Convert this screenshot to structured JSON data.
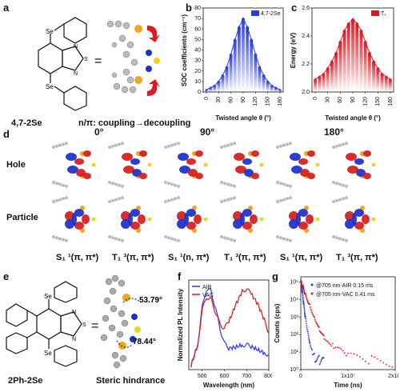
{
  "panels": {
    "a": "a",
    "b": "b",
    "c": "c",
    "d": "d",
    "e": "e",
    "f": "f",
    "g": "g"
  },
  "a": {
    "compound": "4,7-2Se",
    "coupling_text": "n/π: coupling→decoupling",
    "atom": "Se",
    "heteroatoms": [
      "N",
      "S",
      "N"
    ],
    "equals": "="
  },
  "b": {
    "legend": "4,7-2Se",
    "ylabel": "SOC coefficients (cm⁻¹)",
    "xlabel": "Twisted angle θ (°)",
    "xticks": [
      "0",
      "30",
      "60",
      "90",
      "120",
      "150",
      "180"
    ],
    "yticks": [
      "0",
      "10",
      "20",
      "30",
      "40",
      "50",
      "60",
      "70",
      "80"
    ]
  },
  "c": {
    "legend": "T₁",
    "ylabel": "Energy (eV)",
    "xlabel": "Twisted angle θ (°)",
    "xticks": [
      "0",
      "30",
      "60",
      "90",
      "120",
      "150",
      "180"
    ],
    "yticks": [
      "2.0",
      "2.2",
      "2.4",
      "2.6"
    ]
  },
  "d": {
    "angles": [
      "0°",
      "90°",
      "180°"
    ],
    "rows": [
      "Hole",
      "Particle"
    ],
    "states": [
      "S₁ ¹(π, π*)",
      "T₁ ³(π, π*)",
      "S₁ ¹(n, π*)",
      "T₁ ³(π, π*)",
      "S₁ ¹(π, π*)",
      "T₁ ³(π, π*)"
    ]
  },
  "e": {
    "compound": "2Ph-2Se",
    "caption": "Steric hindrance",
    "angle1": "53.79°",
    "angle2": "78.44°",
    "equals": "="
  },
  "f": {
    "legend": [
      "AIR",
      "VAC"
    ],
    "ylabel": "Normalized PL Intensity",
    "xlabel": "Wavelength (nm)",
    "xticks": [
      "500",
      "600",
      "700",
      "800"
    ]
  },
  "g": {
    "legend": [
      "@705 nm-AIR 0.15 ms",
      "@705 nm-VAC 0.41 ms"
    ],
    "ylabel": "Counts (cps)",
    "xlabel": "Time (ns)",
    "xticks": [
      "0",
      "1x10⁷",
      "2x10⁷"
    ],
    "yticks": [
      "10⁰",
      "10¹",
      "10²",
      "10³",
      "10⁴",
      "10⁵"
    ]
  },
  "colors": {
    "blue": "#2a3be0",
    "red": "#e0141e",
    "lightblue": "#8aa0f5",
    "lightred": "#f5878d",
    "lobeRed": "#d81a1a",
    "lobeBlue": "#1a2fc8"
  },
  "chart_data": [
    {
      "type": "bar",
      "x": [
        0,
        10,
        20,
        30,
        40,
        50,
        60,
        70,
        80,
        90,
        100,
        110,
        120,
        130,
        140,
        150,
        160,
        170,
        180
      ],
      "values": [
        2,
        4,
        6,
        10,
        16,
        24,
        36,
        50,
        62,
        70,
        62,
        50,
        36,
        24,
        16,
        10,
        6,
        4,
        2
      ],
      "xlabel": "Twisted angle θ (°)",
      "ylabel": "SOC coefficients (cm⁻¹)",
      "xlim": [
        0,
        180
      ],
      "ylim": [
        0,
        80
      ],
      "series_name": "4,7-2Se"
    },
    {
      "type": "bar",
      "x": [
        0,
        10,
        20,
        30,
        40,
        50,
        60,
        70,
        80,
        90,
        100,
        110,
        120,
        130,
        140,
        150,
        160,
        170,
        180
      ],
      "values": [
        2.09,
        2.11,
        2.13,
        2.17,
        2.22,
        2.28,
        2.36,
        2.44,
        2.49,
        2.52,
        2.49,
        2.44,
        2.36,
        2.28,
        2.22,
        2.17,
        2.13,
        2.11,
        2.09
      ],
      "xlabel": "Twisted angle θ (°)",
      "ylabel": "Energy (eV)",
      "xlim": [
        0,
        180
      ],
      "ylim": [
        2.0,
        2.6
      ],
      "series_name": "T₁"
    },
    {
      "type": "line",
      "xlabel": "Wavelength (nm)",
      "ylabel": "Normalized PL Intensity",
      "xlim": [
        440,
        800
      ],
      "series": [
        {
          "name": "AIR",
          "x": [
            450,
            480,
            500,
            520,
            540,
            560,
            580,
            600,
            620,
            650,
            680,
            700,
            720,
            750,
            780,
            800
          ],
          "values": [
            0.05,
            0.3,
            0.75,
            0.98,
            0.95,
            0.75,
            0.5,
            0.32,
            0.26,
            0.27,
            0.3,
            0.3,
            0.28,
            0.24,
            0.2,
            0.18
          ]
        },
        {
          "name": "VAC",
          "x": [
            450,
            480,
            500,
            520,
            540,
            560,
            580,
            600,
            620,
            650,
            680,
            700,
            720,
            750,
            780,
            800
          ],
          "values": [
            0.05,
            0.3,
            0.72,
            0.88,
            0.85,
            0.7,
            0.55,
            0.5,
            0.58,
            0.78,
            0.95,
            0.98,
            0.92,
            0.8,
            0.6,
            0.45
          ]
        }
      ]
    },
    {
      "type": "scatter",
      "xlabel": "Time (ns)",
      "ylabel": "Counts (cps)",
      "xlim": [
        0,
        20000000
      ],
      "ylim": [
        1,
        100000
      ],
      "yscale": "log",
      "series": [
        {
          "name": "@705 nm-AIR 0.15 ms",
          "x": [
            0,
            300000,
            600000,
            1000000,
            1500000,
            2000000,
            3000000,
            4000000,
            5000000
          ],
          "values": [
            100000,
            30000,
            6000,
            900,
            150,
            30,
            6,
            3,
            2
          ]
        },
        {
          "name": "@705 nm-VAC 0.41 ms",
          "x": [
            0,
            500000,
            1000000,
            2000000,
            3000000,
            4000000,
            5000000,
            7000000,
            10000000,
            15000000,
            20000000
          ],
          "values": [
            100000,
            50000,
            20000,
            4000,
            900,
            200,
            60,
            12,
            4,
            3,
            3
          ]
        }
      ]
    }
  ]
}
